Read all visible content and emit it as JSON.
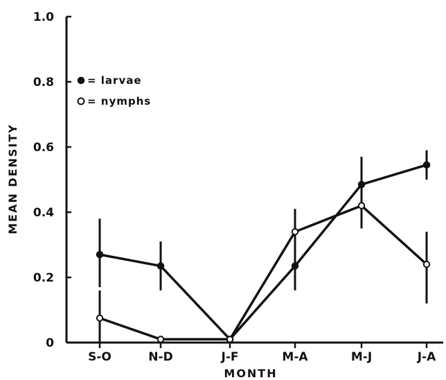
{
  "chart_data": {
    "type": "line",
    "categories": [
      "S-O",
      "N-D",
      "J-F",
      "M-A",
      "M-J",
      "J-A"
    ],
    "xlabel": "MONTH",
    "ylabel": "MEAN DENSITY",
    "ylim": [
      0,
      1.0
    ],
    "yticks": [
      0,
      0.2,
      0.4,
      0.6,
      0.8,
      1.0
    ],
    "ytick_labels": [
      "0",
      "0.2",
      "0.4",
      "0.6",
      "0.8",
      "1.0"
    ],
    "grid": false,
    "legend_placement": "top-left",
    "series": [
      {
        "name": "larvae",
        "marker": "filled-circle",
        "legend_label": "= larvae",
        "values": [
          0.27,
          0.235,
          0.01,
          0.235,
          0.485,
          0.545
        ],
        "error_low": [
          0.17,
          0.16,
          0.0,
          0.16,
          0.4,
          0.5
        ],
        "error_high": [
          0.38,
          0.31,
          0.01,
          0.34,
          0.57,
          0.59
        ]
      },
      {
        "name": "nymphs",
        "marker": "open-circle",
        "legend_label": "= nymphs",
        "values": [
          0.075,
          0.01,
          0.01,
          0.34,
          0.42,
          0.24
        ],
        "error_low": [
          0.0,
          0.01,
          0.01,
          0.28,
          0.35,
          0.12
        ],
        "error_high": [
          0.16,
          0.01,
          0.01,
          0.41,
          0.47,
          0.34
        ]
      }
    ],
    "colors": {
      "ink": "#111111",
      "background": "#ffffff"
    }
  }
}
